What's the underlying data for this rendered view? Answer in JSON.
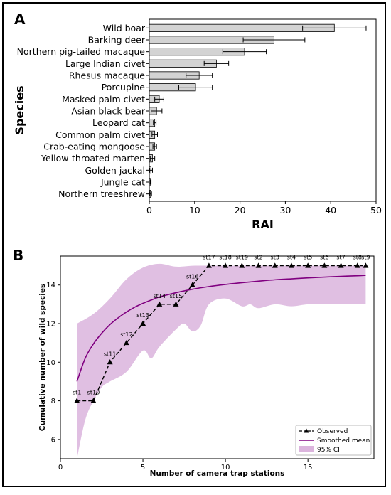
{
  "panel_a": {
    "letter": "A"
  },
  "panel_b": {
    "letter": "B"
  },
  "chart_data": [
    {
      "type": "bar",
      "orientation": "horizontal",
      "xlabel": "RAI",
      "ylabel": "Species",
      "xlim": [
        0,
        50
      ],
      "xticks": [
        0,
        10,
        20,
        30,
        40,
        50
      ],
      "bar_color": "#d3d3d3",
      "categories": [
        "Wild boar",
        "Barking deer",
        "Northern pig-tailed macaque",
        "Large Indian civet",
        "Rhesus macaque",
        "Porcupine",
        "Masked palm civet",
        "Asian black bear",
        "Leopard cat",
        "Common palm civet",
        "Crab-eating mongoose",
        "Yellow-throated marten",
        "Golden jackal",
        "Jungle cat",
        "Northern treeshrew"
      ],
      "values": [
        40.8,
        27.5,
        21.0,
        14.8,
        11.0,
        10.2,
        2.2,
        1.6,
        1.2,
        1.2,
        1.2,
        0.7,
        0.4,
        0.3,
        0.3
      ],
      "error": [
        7.0,
        6.8,
        4.8,
        2.7,
        2.9,
        3.7,
        1.0,
        1.2,
        0.3,
        0.6,
        0.4,
        0.5,
        0.3,
        0.1,
        0.2
      ]
    },
    {
      "type": "line",
      "xlabel": "Number of camera trap stations",
      "ylabel": "Cumulative number of wild species",
      "xlim": [
        0,
        19
      ],
      "ylim": [
        5,
        15.5
      ],
      "xticks": [
        0,
        5,
        10,
        15
      ],
      "yticks": [
        6,
        8,
        10,
        12,
        14
      ],
      "legend_position": "bottom-right",
      "legend": [
        "Observed",
        "Smoothed mean",
        "95% CI"
      ],
      "colors": {
        "observed": "#000000",
        "smoothed": "#800080",
        "ci": "#dbb4dd"
      },
      "observed": {
        "x": [
          1,
          2,
          3,
          4,
          5,
          6,
          7,
          8,
          9,
          10,
          11,
          12,
          13,
          14,
          15,
          16,
          17,
          18
        ],
        "y": [
          8,
          8,
          10,
          11,
          12,
          13,
          13,
          14,
          15,
          15,
          15,
          15,
          15,
          15,
          15,
          15,
          15,
          15
        ],
        "labels": [
          "st1",
          "st10",
          "st11",
          "st12",
          "st13",
          "st14",
          "st15",
          "st16",
          "st17",
          "st18",
          "st19",
          "st2",
          "st3",
          "st4",
          "st5",
          "st6",
          "st7",
          "st8"
        ],
        "extra_point": {
          "x": 18.5,
          "y": 15,
          "label": "st9"
        }
      },
      "smoothed_mean": {
        "x": [
          1,
          1.5,
          2,
          2.5,
          3,
          3.5,
          4,
          4.5,
          5,
          5.5,
          6,
          7,
          8,
          9,
          10,
          11,
          12,
          13,
          14,
          15,
          16,
          17,
          18,
          18.5
        ],
        "y": [
          9.0,
          10.2,
          10.95,
          11.5,
          11.95,
          12.3,
          12.6,
          12.85,
          13.05,
          13.22,
          13.38,
          13.6,
          13.78,
          13.92,
          14.03,
          14.12,
          14.2,
          14.27,
          14.32,
          14.37,
          14.41,
          14.45,
          14.48,
          14.5
        ]
      },
      "ci_upper": {
        "x": [
          1,
          2,
          3,
          4,
          5,
          6,
          7,
          8,
          9,
          10,
          11,
          12,
          13,
          14,
          15,
          16,
          17,
          18,
          18.5
        ],
        "y": [
          12.0,
          12.5,
          13.3,
          14.3,
          14.9,
          15.1,
          14.95,
          15.0,
          15.0,
          15.0,
          15.0,
          15.0,
          15.0,
          15.0,
          15.0,
          15.0,
          15.0,
          15.0,
          15.0
        ]
      },
      "ci_lower": {
        "x": [
          1,
          1.5,
          2,
          2.5,
          3,
          4,
          5,
          5.5,
          6,
          7,
          7.5,
          8,
          8.5,
          9,
          10,
          11,
          11.5,
          12,
          13,
          14,
          15,
          16,
          17,
          18,
          18.5
        ],
        "y": [
          5.0,
          7.0,
          8.0,
          8.7,
          9.0,
          9.5,
          10.6,
          10.2,
          10.8,
          11.7,
          12.0,
          11.6,
          11.9,
          13.0,
          13.3,
          12.9,
          13.0,
          12.8,
          13.0,
          12.9,
          13.0,
          13.0,
          13.0,
          13.0,
          13.0
        ]
      }
    }
  ]
}
